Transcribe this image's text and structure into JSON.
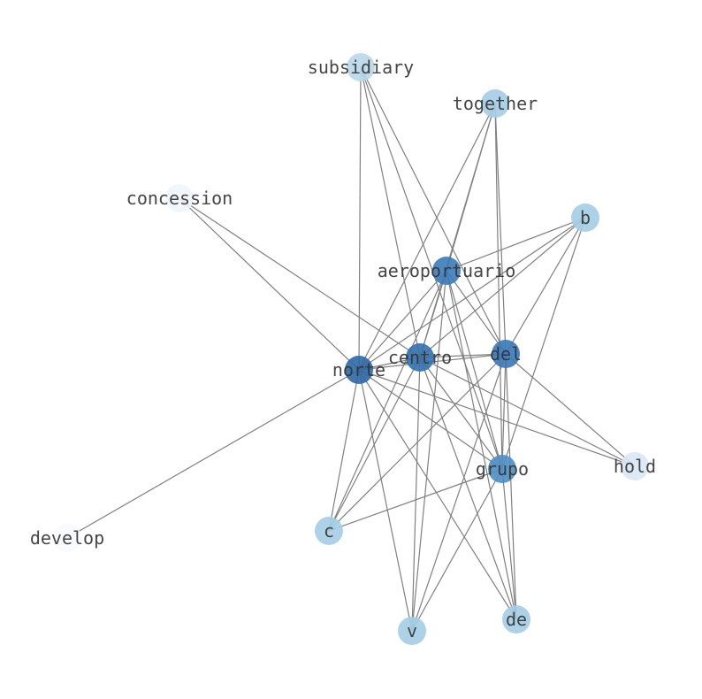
{
  "graph": {
    "edge_color": "#808080",
    "nodes": [
      {
        "id": "subsidiary",
        "color": "#b9d8ea"
      },
      {
        "id": "together",
        "color": "#a4cde4"
      },
      {
        "id": "concession",
        "color": "#f0f5fc"
      },
      {
        "id": "b",
        "color": "#a4cde4"
      },
      {
        "id": "aeroportuario",
        "color": "#3b7bb8"
      },
      {
        "id": "centro",
        "color": "#3370ae"
      },
      {
        "id": "del",
        "color": "#3a78b5"
      },
      {
        "id": "norte",
        "color": "#2c67a5"
      },
      {
        "id": "grupo",
        "color": "#4c8ec4"
      },
      {
        "id": "hold",
        "color": "#d9e7f5"
      },
      {
        "id": "c",
        "color": "#a4cde4"
      },
      {
        "id": "develop",
        "color": "#f6f9fe"
      },
      {
        "id": "v",
        "color": "#a4cde4"
      },
      {
        "id": "de",
        "color": "#a4cde4"
      }
    ],
    "edges": [
      [
        "norte",
        "subsidiary"
      ],
      [
        "norte",
        "together"
      ],
      [
        "norte",
        "concession"
      ],
      [
        "norte",
        "b"
      ],
      [
        "norte",
        "aeroportuario"
      ],
      [
        "norte",
        "centro"
      ],
      [
        "norte",
        "del"
      ],
      [
        "norte",
        "grupo"
      ],
      [
        "norte",
        "hold"
      ],
      [
        "norte",
        "c"
      ],
      [
        "norte",
        "develop"
      ],
      [
        "norte",
        "v"
      ],
      [
        "norte",
        "de"
      ],
      [
        "centro",
        "concession"
      ],
      [
        "centro",
        "subsidiary"
      ],
      [
        "centro",
        "aeroportuario"
      ],
      [
        "centro",
        "del"
      ],
      [
        "centro",
        "b"
      ],
      [
        "centro",
        "grupo"
      ],
      [
        "centro",
        "hold"
      ],
      [
        "centro",
        "c"
      ],
      [
        "centro",
        "v"
      ],
      [
        "centro",
        "de"
      ],
      [
        "centro",
        "together"
      ],
      [
        "aeroportuario",
        "together"
      ],
      [
        "aeroportuario",
        "b"
      ],
      [
        "aeroportuario",
        "del"
      ],
      [
        "aeroportuario",
        "grupo"
      ],
      [
        "aeroportuario",
        "c"
      ],
      [
        "aeroportuario",
        "v"
      ],
      [
        "aeroportuario",
        "de"
      ],
      [
        "del",
        "together"
      ],
      [
        "del",
        "b"
      ],
      [
        "del",
        "subsidiary"
      ],
      [
        "del",
        "grupo"
      ],
      [
        "del",
        "hold"
      ],
      [
        "del",
        "c"
      ],
      [
        "del",
        "v"
      ],
      [
        "del",
        "de"
      ],
      [
        "grupo",
        "b"
      ],
      [
        "grupo",
        "c"
      ],
      [
        "grupo",
        "de"
      ],
      [
        "grupo",
        "v"
      ],
      [
        "grupo",
        "together"
      ],
      [
        "grupo",
        "subsidiary"
      ]
    ]
  }
}
